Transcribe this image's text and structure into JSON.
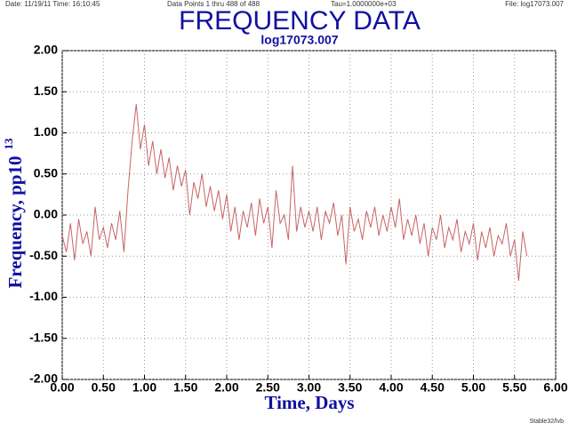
{
  "chart_data": {
    "type": "line",
    "header_left": "Date: 11/19/11  Time: 16:10:45",
    "header_points": "Data Points 1 thru 488 of 488",
    "header_tau": "Tau=1.0000000e+03",
    "header_file": "File: log17073.007",
    "title": "FREQUENCY DATA",
    "subtitle": "log17073.007",
    "x_label": "Time, Days",
    "y_label": "Frequency, pp10",
    "y_label_superscript": "13",
    "footer": "Stable32/lvb",
    "grid": true,
    "xlim": [
      0,
      6
    ],
    "ylim": [
      -2,
      2
    ],
    "xticks": [
      {
        "value": 0,
        "label": "0.00"
      },
      {
        "value": 0.5,
        "label": "0.50"
      },
      {
        "value": 1,
        "label": "1.00"
      },
      {
        "value": 1.5,
        "label": "1.50"
      },
      {
        "value": 2,
        "label": "2.00"
      },
      {
        "value": 2.5,
        "label": "2.50"
      },
      {
        "value": 3,
        "label": "3.00"
      },
      {
        "value": 3.5,
        "label": "3.50"
      },
      {
        "value": 4,
        "label": "4.00"
      },
      {
        "value": 4.5,
        "label": "4.50"
      },
      {
        "value": 5,
        "label": "5.00"
      },
      {
        "value": 5.5,
        "label": "5.50"
      },
      {
        "value": 6,
        "label": "6.00"
      }
    ],
    "yticks": [
      {
        "value": 2,
        "label": "2.00"
      },
      {
        "value": 1.5,
        "label": "1.50"
      },
      {
        "value": 1,
        "label": "1.00"
      },
      {
        "value": 0.5,
        "label": "0.50"
      },
      {
        "value": 0,
        "label": "0.00"
      },
      {
        "value": -0.5,
        "label": "-0.50"
      },
      {
        "value": -1,
        "label": "-1.00"
      },
      {
        "value": -1.5,
        "label": "-1.50"
      },
      {
        "value": -2,
        "label": "-2.00"
      }
    ],
    "series": [
      {
        "color": "#c86464",
        "x": [
          0,
          0.05,
          0.1,
          0.15,
          0.2,
          0.25,
          0.3,
          0.35,
          0.4,
          0.45,
          0.5,
          0.55,
          0.6,
          0.65,
          0.7,
          0.75,
          0.8,
          0.85,
          0.9,
          0.95,
          1,
          1.05,
          1.1,
          1.15,
          1.2,
          1.25,
          1.3,
          1.35,
          1.4,
          1.45,
          1.5,
          1.55,
          1.6,
          1.65,
          1.7,
          1.75,
          1.8,
          1.85,
          1.9,
          1.95,
          2,
          2.05,
          2.1,
          2.15,
          2.2,
          2.25,
          2.3,
          2.35,
          2.4,
          2.45,
          2.5,
          2.55,
          2.6,
          2.65,
          2.7,
          2.75,
          2.8,
          2.85,
          2.9,
          2.95,
          3,
          3.05,
          3.1,
          3.15,
          3.2,
          3.25,
          3.3,
          3.35,
          3.4,
          3.45,
          3.5,
          3.55,
          3.6,
          3.65,
          3.7,
          3.75,
          3.8,
          3.85,
          3.9,
          3.95,
          4,
          4.05,
          4.1,
          4.15,
          4.2,
          4.25,
          4.3,
          4.35,
          4.4,
          4.45,
          4.5,
          4.55,
          4.6,
          4.65,
          4.7,
          4.75,
          4.8,
          4.85,
          4.9,
          4.95,
          5,
          5.05,
          5.1,
          5.15,
          5.2,
          5.25,
          5.3,
          5.35,
          5.4,
          5.45,
          5.5,
          5.55,
          5.6,
          5.65
        ],
        "values": [
          -0.25,
          -0.45,
          -0.1,
          -0.55,
          -0.05,
          -0.35,
          -0.2,
          -0.5,
          0.1,
          -0.3,
          -0.15,
          -0.4,
          -0.1,
          -0.3,
          0.05,
          -0.45,
          0.3,
          0.9,
          1.35,
          0.8,
          1.1,
          0.6,
          0.9,
          0.5,
          0.8,
          0.45,
          0.7,
          0.3,
          0.6,
          0.35,
          0.55,
          0,
          0.4,
          0.2,
          0.5,
          0.1,
          0.35,
          0.05,
          0.3,
          -0.05,
          0.25,
          -0.2,
          0.1,
          -0.3,
          0.05,
          -0.15,
          0.15,
          -0.25,
          0.2,
          -0.1,
          0.1,
          -0.4,
          0.3,
          -0.1,
          0,
          -0.3,
          0.6,
          -0.2,
          0.1,
          -0.15,
          0.05,
          -0.2,
          0.1,
          -0.3,
          0.05,
          -0.1,
          0.15,
          -0.25,
          0,
          -0.6,
          0.1,
          -0.2,
          -0.05,
          -0.3,
          0.05,
          -0.15,
          0.1,
          -0.25,
          0,
          -0.2,
          0.1,
          -0.15,
          0.2,
          -0.3,
          -0.05,
          -0.25,
          0,
          -0.35,
          -0.1,
          -0.5,
          -0.15,
          -0.3,
          0,
          -0.4,
          -0.15,
          -0.3,
          -0.05,
          -0.45,
          -0.2,
          -0.35,
          -0.1,
          -0.55,
          -0.2,
          -0.4,
          -0.15,
          -0.5,
          -0.25,
          -0.35,
          -0.1,
          -0.5,
          -0.3,
          -0.8,
          -0.2,
          -0.5
        ]
      }
    ]
  }
}
